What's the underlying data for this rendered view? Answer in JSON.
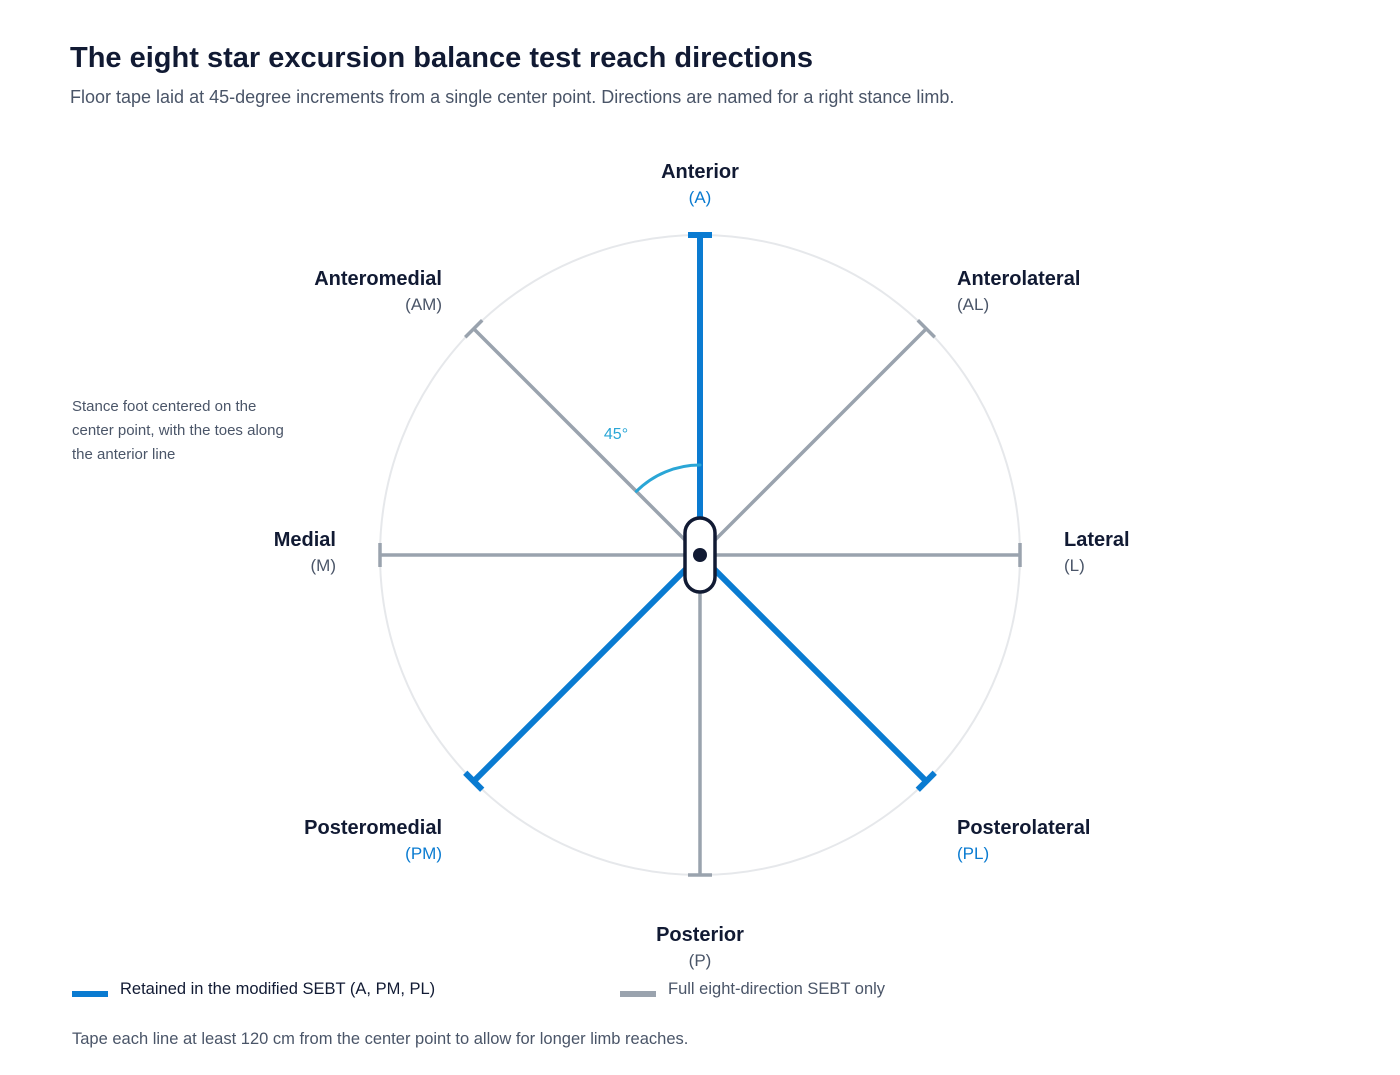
{
  "title": "The eight star excursion balance test reach directions",
  "subtitle": "Floor tape laid at 45-degree increments from a single center point. Directions are named for a right stance limb.",
  "colors": {
    "retained": "#0a7bd1",
    "full_only": "#9aa3ae",
    "circle": "#e6e8eb",
    "angle_arc": "#2aa6d6",
    "text_dark": "#111a33",
    "text_muted": "#4a5568"
  },
  "directions": [
    {
      "name": "Anterior",
      "abbr": "(A)",
      "angle_deg": 0,
      "retained": true
    },
    {
      "name": "Anterolateral",
      "abbr": "(AL)",
      "angle_deg": 45,
      "retained": false
    },
    {
      "name": "Lateral",
      "abbr": "(L)",
      "angle_deg": 90,
      "retained": false
    },
    {
      "name": "Posterolateral",
      "abbr": "(PL)",
      "angle_deg": 135,
      "retained": true
    },
    {
      "name": "Posterior",
      "abbr": "(P)",
      "angle_deg": 180,
      "retained": false
    },
    {
      "name": "Posteromedial",
      "abbr": "(PM)",
      "angle_deg": 225,
      "retained": true
    },
    {
      "name": "Medial",
      "abbr": "(M)",
      "angle_deg": 270,
      "retained": false
    },
    {
      "name": "Anteromedial",
      "abbr": "(AM)",
      "angle_deg": 315,
      "retained": false
    }
  ],
  "angle_label": "45°",
  "note": "Stance foot centered on the center point, with the toes along the anterior line",
  "legend": {
    "retained_label": "Retained in the modified SEBT (A, PM, PL)",
    "full_label": "Full eight-direction SEBT only"
  },
  "footer": "Tape each line at least 120 cm from the center point to allow for longer limb reaches."
}
